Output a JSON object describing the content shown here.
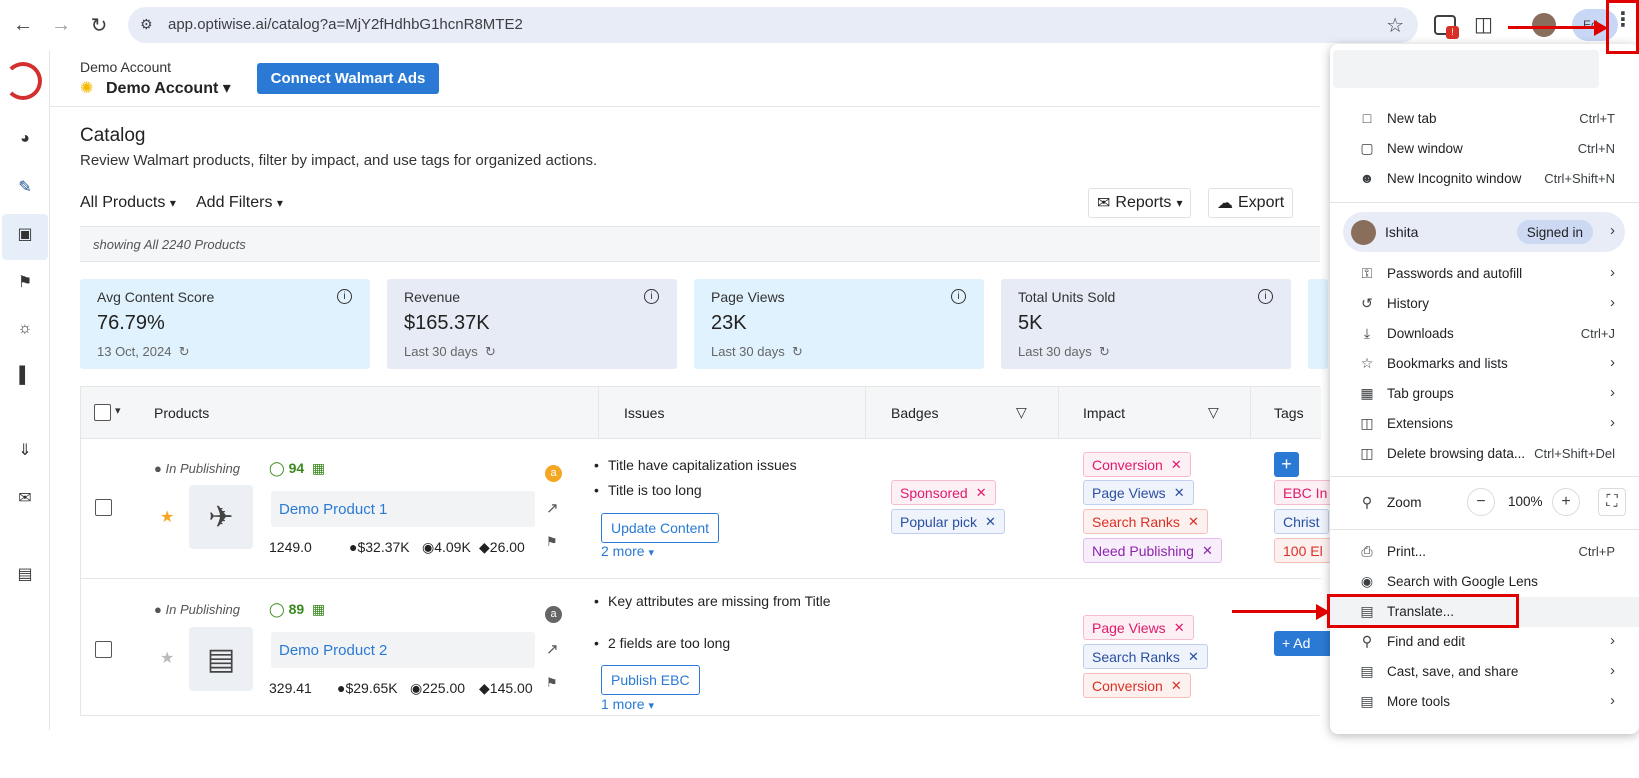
{
  "browser": {
    "url": "app.optiwise.ai/catalog?a=MjY2fHdhbG1hcnR8MTE2",
    "profile_short": "Ed"
  },
  "header": {
    "account_label": "Demo Account",
    "account_name": "Demo Account",
    "connect_button": "Connect Walmart Ads"
  },
  "page": {
    "title": "Catalog",
    "subtitle": "Review Walmart products, filter by impact, and use tags for organized actions.",
    "all_products": "All Products",
    "add_filters": "Add Filters",
    "reports": "Reports",
    "export": "Export",
    "showing": "showing All 2240 Products"
  },
  "cards": [
    {
      "label": "Avg Content Score",
      "value": "76.79%",
      "sub": "13 Oct, 2024",
      "color": "#e0f2fd"
    },
    {
      "label": "Revenue",
      "value": "$165.37K",
      "sub": "Last 30 days",
      "color": "#e7ebf5"
    },
    {
      "label": "Page Views",
      "value": "23K",
      "sub": "Last 30 days",
      "color": "#e0f2fd"
    },
    {
      "label": "Total Units Sold",
      "value": "5K",
      "sub": "Last 30 days",
      "color": "#e7ebf5"
    }
  ],
  "table": {
    "headers": {
      "products": "Products",
      "issues": "Issues",
      "badges": "Badges",
      "impact": "Impact",
      "tags": "Tags"
    },
    "rows": [
      {
        "status": "In Publishing",
        "score": "94",
        "name": "Demo Product 1",
        "price": "1249.0",
        "revenue": "$32.37K",
        "views": "4.09K",
        "units": "26.00",
        "issues": [
          "Title have capitalization issues",
          "Title is too long"
        ],
        "action": "Update Content",
        "more": "2 more",
        "badges": [
          "Sponsored",
          "Popular pick"
        ],
        "impact": [
          "Conversion",
          "Page Views",
          "Search Ranks",
          "Need Publishing"
        ],
        "tags": [
          "EBC In",
          "Christ",
          "100 El"
        ]
      },
      {
        "status": "In Publishing",
        "score": "89",
        "name": "Demo Product 2",
        "price": "329.41",
        "revenue": "$29.65K",
        "views": "225.00",
        "units": "145.00",
        "issues": [
          "Key attributes are missing from Title",
          "2 fields are too long"
        ],
        "action": "Publish EBC",
        "more": "1 more",
        "badges": [],
        "impact": [
          "Page Views",
          "Search Ranks",
          "Conversion"
        ],
        "add_tag": "+ Ad"
      }
    ]
  },
  "menu": {
    "items": [
      {
        "label": "New tab",
        "shortcut": "Ctrl+T"
      },
      {
        "label": "New window",
        "shortcut": "Ctrl+N"
      },
      {
        "label": "New Incognito window",
        "shortcut": "Ctrl+Shift+N"
      }
    ],
    "profile_name": "Ishita",
    "signed_in": "Signed in",
    "items2": [
      {
        "label": "Passwords and autofill"
      },
      {
        "label": "History"
      },
      {
        "label": "Downloads",
        "shortcut": "Ctrl+J"
      },
      {
        "label": "Bookmarks and lists"
      },
      {
        "label": "Tab groups"
      },
      {
        "label": "Extensions"
      },
      {
        "label": "Delete browsing data...",
        "shortcut": "Ctrl+Shift+Del"
      }
    ],
    "zoom_label": "Zoom",
    "zoom_value": "100%",
    "items3": [
      {
        "label": "Print...",
        "shortcut": "Ctrl+P"
      },
      {
        "label": "Search with Google Lens"
      },
      {
        "label": "Translate..."
      },
      {
        "label": "Find and edit"
      },
      {
        "label": "Cast, save, and share"
      },
      {
        "label": "More tools"
      }
    ]
  }
}
